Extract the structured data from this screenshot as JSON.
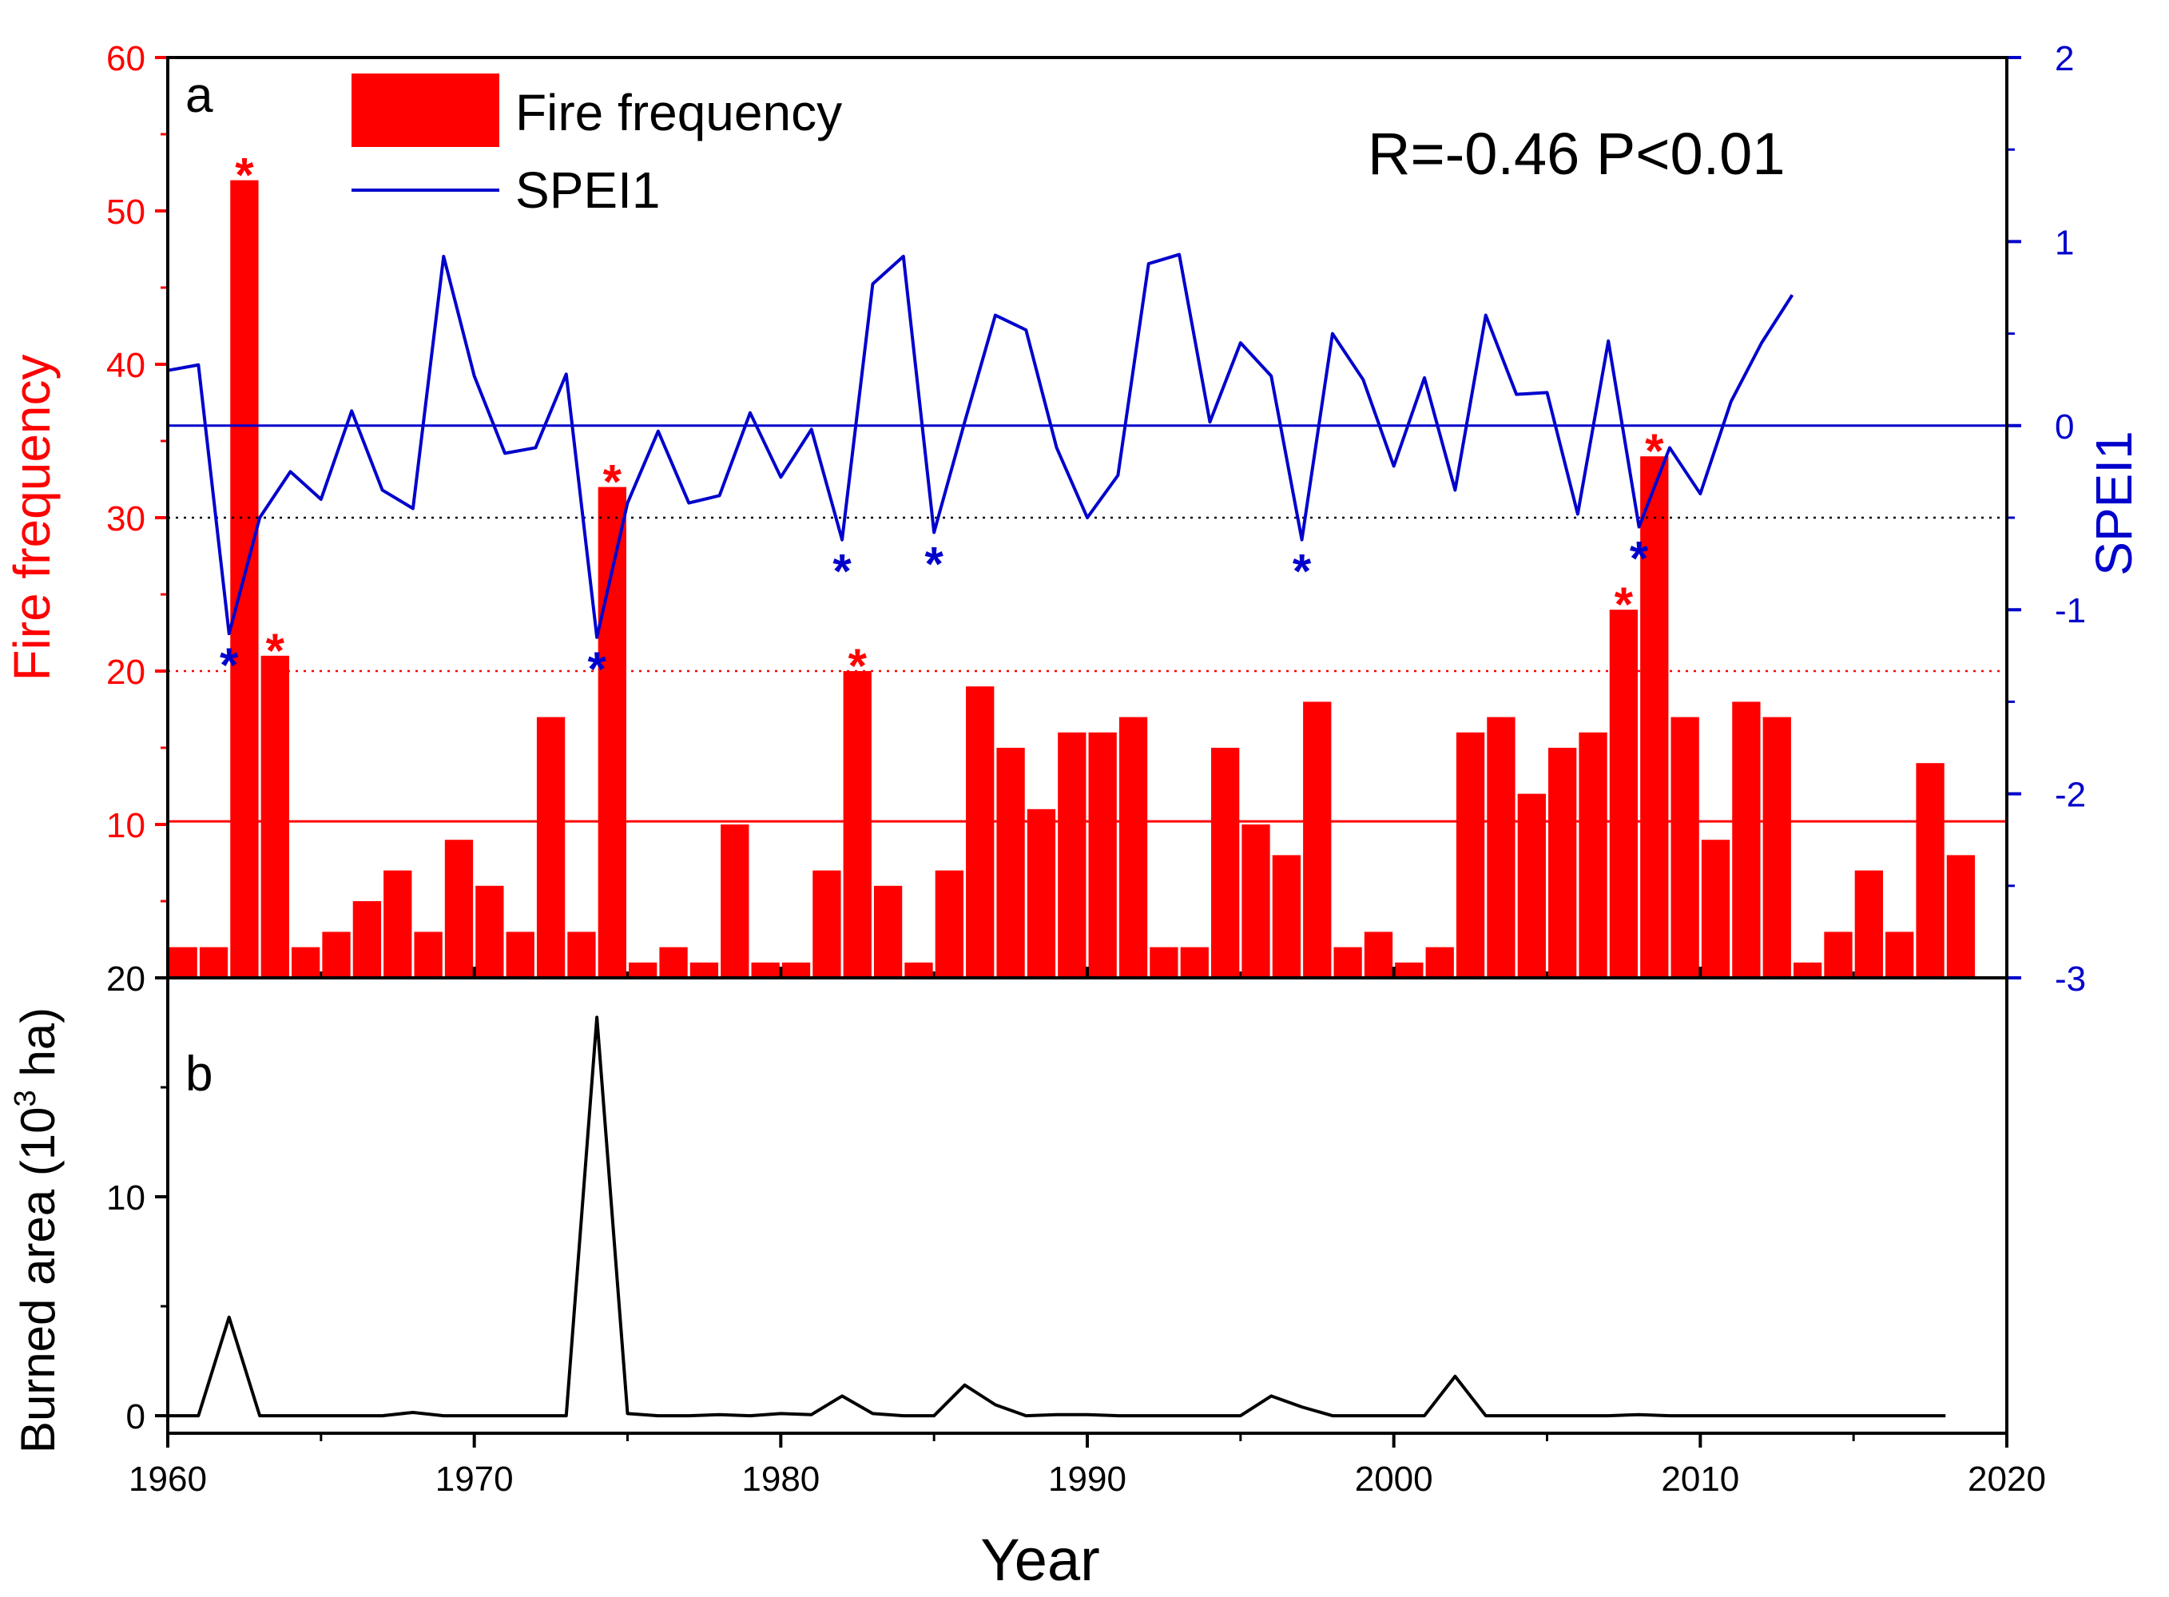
{
  "colors": {
    "fire": "#ff0000",
    "spei": "#0000cc",
    "burned": "#000000",
    "axis": "#000000"
  },
  "chart_data": [
    {
      "panel": "a",
      "type": "bar+line",
      "panel_label": "a",
      "annotation": "R=-0.46 P<0.01",
      "legend": [
        {
          "name": "Fire frequency",
          "marker": "bar"
        },
        {
          "name": "SPEI1",
          "marker": "line"
        }
      ],
      "legend_position": "top-left",
      "ylabel_left": "Fire frequency",
      "ylabel_right": "SPEI1",
      "ylim_left": [
        0,
        60
      ],
      "ylim_right": [
        -3,
        2
      ],
      "yticks_left": [
        10,
        20,
        30,
        40,
        50,
        60
      ],
      "yticks_left_labels": [
        "10",
        "20",
        "30",
        "40",
        "50",
        "60"
      ],
      "yticks_right": [
        -3,
        -2,
        -1,
        0,
        1,
        2
      ],
      "yticks_right_labels": [
        "-3",
        "-2",
        "-1",
        "0",
        "1",
        "2"
      ],
      "reference_lines_left": [
        {
          "value": 10.2,
          "style": "solid",
          "color": "#ff0000"
        },
        {
          "value": 20,
          "style": "dotted",
          "color": "#ff0000"
        },
        {
          "value": 30,
          "style": "dotted",
          "color": "#000000"
        }
      ],
      "reference_lines_right": [
        {
          "value": 0,
          "style": "solid",
          "color": "#0000cc"
        }
      ],
      "fire_frequency": {
        "x": [
          1960,
          1961,
          1962,
          1963,
          1964,
          1965,
          1966,
          1967,
          1968,
          1969,
          1970,
          1971,
          1972,
          1973,
          1974,
          1975,
          1976,
          1977,
          1978,
          1979,
          1980,
          1981,
          1982,
          1983,
          1984,
          1985,
          1986,
          1987,
          1988,
          1989,
          1990,
          1991,
          1992,
          1993,
          1994,
          1995,
          1996,
          1997,
          1998,
          1999,
          2000,
          2001,
          2002,
          2003,
          2004,
          2005,
          2006,
          2007,
          2008,
          2009,
          2010,
          2011,
          2012,
          2013,
          2014,
          2015,
          2016,
          2017,
          2018
        ],
        "values": [
          2,
          2,
          52,
          21,
          2,
          3,
          5,
          7,
          3,
          9,
          6,
          3,
          17,
          3,
          32,
          1,
          2,
          1,
          10,
          1,
          1,
          7,
          20,
          6,
          1,
          7,
          19,
          15,
          11,
          16,
          16,
          17,
          2,
          2,
          15,
          10,
          8,
          18,
          2,
          3,
          1,
          2,
          16,
          17,
          12,
          15,
          16,
          24,
          34,
          17,
          9,
          18,
          17,
          1,
          3,
          7,
          3,
          14,
          8
        ],
        "significant_years": [
          1962,
          1963,
          1974,
          1982,
          2007,
          2008
        ]
      },
      "spei1": {
        "x": [
          1960,
          1961,
          1962,
          1963,
          1964,
          1965,
          1966,
          1967,
          1968,
          1969,
          1970,
          1971,
          1972,
          1973,
          1974,
          1975,
          1976,
          1977,
          1978,
          1979,
          1980,
          1981,
          1982,
          1983,
          1984,
          1985,
          1986,
          1987,
          1988,
          1989,
          1990,
          1991,
          1992,
          1993,
          1994,
          1995,
          1996,
          1997,
          1998,
          1999,
          2000,
          2001,
          2002,
          2003,
          2004,
          2005,
          2006,
          2007,
          2008,
          2009,
          2010,
          2011,
          2012,
          2013
        ],
        "values": [
          0.3,
          0.33,
          -1.13,
          -0.5,
          -0.25,
          -0.4,
          0.08,
          -0.35,
          -0.45,
          0.92,
          0.27,
          -0.15,
          -0.12,
          0.28,
          -1.15,
          -0.42,
          -0.03,
          -0.42,
          -0.38,
          0.07,
          -0.28,
          -0.02,
          -0.62,
          0.77,
          0.92,
          -0.58,
          0.02,
          0.6,
          0.52,
          -0.12,
          -0.5,
          -0.27,
          0.88,
          0.93,
          0.02,
          0.45,
          0.27,
          -0.62,
          0.5,
          0.25,
          -0.22,
          0.26,
          -0.35,
          0.6,
          0.17,
          0.18,
          -0.48,
          0.46,
          -0.55,
          -0.12,
          -0.37,
          0.13,
          0.45,
          0.71
        ],
        "significant_years": [
          1962,
          1974,
          1982,
          1985,
          1997,
          2008
        ]
      },
      "marker_symbol": "*"
    },
    {
      "panel": "b",
      "type": "line",
      "panel_label": "b",
      "ylabel": "Burned area (10",
      "ylabel_sup": "3",
      "ylabel_suffix": " ha)",
      "ylim": [
        -0.8,
        20
      ],
      "yticks": [
        0,
        10,
        20
      ],
      "ytick_labels": [
        "0",
        "10",
        "20"
      ],
      "xlabel": "Year",
      "xlim": [
        1960,
        2020
      ],
      "xticks": [
        1960,
        1970,
        1980,
        1990,
        2000,
        2010,
        2020
      ],
      "xtick_labels": [
        "1960",
        "1970",
        "1980",
        "1990",
        "2000",
        "2010",
        "2020"
      ],
      "x": [
        1960,
        1961,
        1962,
        1963,
        1964,
        1965,
        1966,
        1967,
        1968,
        1969,
        1970,
        1971,
        1972,
        1973,
        1974,
        1975,
        1976,
        1977,
        1978,
        1979,
        1980,
        1981,
        1982,
        1983,
        1984,
        1985,
        1986,
        1987,
        1988,
        1989,
        1990,
        1991,
        1992,
        1993,
        1994,
        1995,
        1996,
        1997,
        1998,
        1999,
        2000,
        2001,
        2002,
        2003,
        2004,
        2005,
        2006,
        2007,
        2008,
        2009,
        2010,
        2011,
        2012,
        2013,
        2014,
        2015,
        2016,
        2017,
        2018
      ],
      "values": [
        0,
        0,
        4.5,
        0,
        0,
        0,
        0,
        0,
        0.15,
        0,
        0,
        0,
        0,
        0,
        18.2,
        0.1,
        0,
        0,
        0.05,
        0,
        0.1,
        0.05,
        0.9,
        0.1,
        0,
        0,
        1.4,
        0.5,
        0,
        0.05,
        0.05,
        0,
        0,
        0,
        0,
        0,
        0.9,
        0.4,
        0,
        0,
        0,
        0,
        1.8,
        0,
        0,
        0,
        0,
        0,
        0.05,
        0,
        0,
        0,
        0,
        0,
        0,
        0,
        0,
        0,
        0
      ]
    }
  ]
}
